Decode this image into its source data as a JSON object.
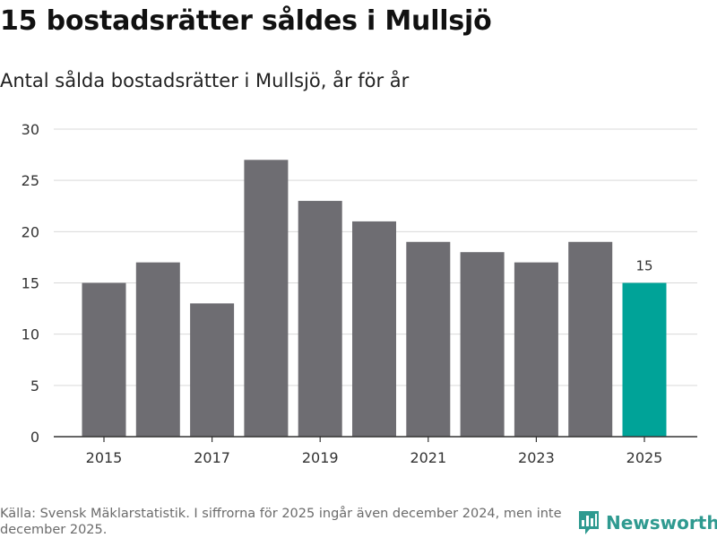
{
  "title": "15 bostadsrätter såldes i Mullsjö",
  "subtitle": "Antal sålda bostadsrätter i Mullsjö, år för år",
  "footer": {
    "source": "Källa: Svensk Mäklarstatistik. I siffrorna för 2025 ingår även december 2024, men inte december 2025."
  },
  "brand": {
    "name": "Newsworthy",
    "icon": "bar-chart-speech-bubble-icon"
  },
  "colors": {
    "bar": "#6e6d72",
    "highlight": "#00a398",
    "grid": "#d9d9d9",
    "axis": "#333333",
    "text": "#333333",
    "brand": "#2f9a90"
  },
  "chart_data": {
    "type": "bar",
    "title": "15 bostadsrätter såldes i Mullsjö",
    "subtitle": "Antal sålda bostadsrätter i Mullsjö, år för år",
    "categories": [
      2015,
      2016,
      2017,
      2018,
      2019,
      2020,
      2021,
      2022,
      2023,
      2024,
      2025
    ],
    "values": [
      15,
      17,
      13,
      27,
      23,
      21,
      19,
      18,
      17,
      19,
      15
    ],
    "highlight_index": 10,
    "data_labels": [
      {
        "index": 10,
        "text": "15"
      }
    ],
    "xticks": [
      "2015",
      "2017",
      "2019",
      "2021",
      "2023",
      "2025"
    ],
    "yticks": [
      0,
      5,
      10,
      15,
      20,
      25,
      30
    ],
    "ylim": [
      0,
      30
    ],
    "xlabel": "",
    "ylabel": "",
    "grid": true
  }
}
